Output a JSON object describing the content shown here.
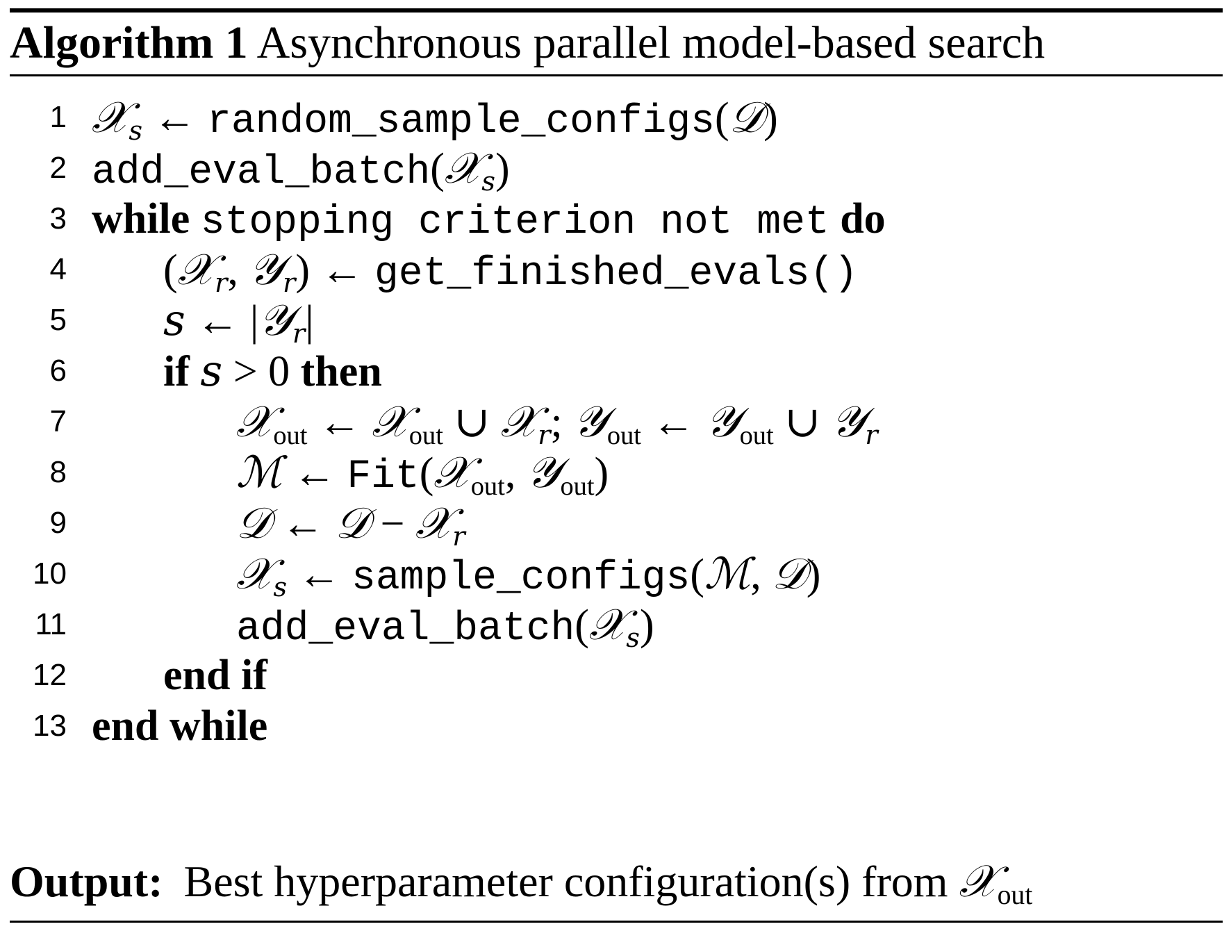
{
  "caption": {
    "label": "Algorithm 1",
    "title": "Asynchronous parallel model-based search"
  },
  "lines": [
    {
      "num": "1"
    },
    {
      "num": "2"
    },
    {
      "num": "3"
    },
    {
      "num": "4"
    },
    {
      "num": "5"
    },
    {
      "num": "6"
    },
    {
      "num": "7"
    },
    {
      "num": "8"
    },
    {
      "num": "9"
    },
    {
      "num": "10"
    },
    {
      "num": "11"
    },
    {
      "num": "12"
    },
    {
      "num": "13"
    }
  ],
  "tokens": {
    "X": "𝒳",
    "Y": "𝒴",
    "D": "𝒟",
    "M": "ℳ",
    "arrow": "←",
    "union": "∪",
    "minus": "−",
    "gt": ">",
    "s": "s",
    "r": "r",
    "out": "out",
    "zero": "0",
    "random_sample_configs": "random_sample_configs",
    "add_eval_batch": "add_eval_batch",
    "stopping_criterion": "stopping criterion not met",
    "get_finished_evals": "get_finished_evals()",
    "fit": "Fit",
    "sample_configs": "sample_configs",
    "kw_while": "while",
    "kw_do": "do",
    "kw_if": "if",
    "kw_then": "then",
    "kw_end_if": "end if",
    "kw_end_while": "end while"
  },
  "output": {
    "label": "Output:",
    "text": "Best hyperparameter configuration(s) from"
  }
}
